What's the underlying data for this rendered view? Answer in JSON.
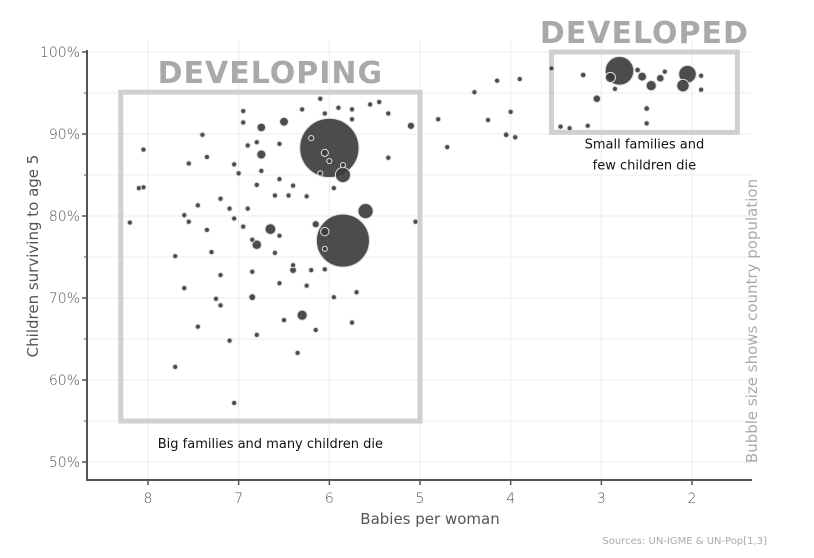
{
  "chart_data": {
    "type": "scatter",
    "title": "",
    "xlabel": "Babies per woman",
    "ylabel": "Children surviving to age 5",
    "xlim": [
      8.65,
      1.35
    ],
    "ylim": [
      47.8,
      100
    ],
    "x_reversed": true,
    "grid": true,
    "x_ticks": [
      8,
      7,
      6,
      5,
      4,
      3,
      2
    ],
    "x_tick_labels": [
      "8",
      "7",
      "6",
      "5",
      "4",
      "3",
      "2"
    ],
    "y_ticks": [
      50,
      60,
      70,
      80,
      90,
      100
    ],
    "y_tick_labels": [
      "50%",
      "60%",
      "70%",
      "80%",
      "90%",
      "100%"
    ],
    "size_note": "Bubble size shows country population",
    "source": "Sources: UN-IGME & UN-Pop[1,3]",
    "regions": [
      {
        "label": "DEVELOPING",
        "x_range": [
          8.3,
          5.0
        ],
        "y_range": [
          55.0,
          95.1
        ],
        "caption": "Big families and many children die"
      },
      {
        "label": "DEVELOPED",
        "x_range": [
          3.55,
          1.5
        ],
        "y_range": [
          90.2,
          100.0
        ],
        "caption_lines": [
          "Small families and",
          "few children die"
        ]
      }
    ],
    "points": [
      {
        "x": 6.0,
        "y": 88.3,
        "size": 1370
      },
      {
        "x": 5.85,
        "y": 77.0,
        "size": 1100
      },
      {
        "x": 2.8,
        "y": 97.7,
        "size": 320
      },
      {
        "x": 2.05,
        "y": 97.3,
        "size": 120
      },
      {
        "x": 5.6,
        "y": 80.6,
        "size": 90
      },
      {
        "x": 5.85,
        "y": 85.0,
        "size": 90
      },
      {
        "x": 6.3,
        "y": 67.9,
        "size": 40
      },
      {
        "x": 6.65,
        "y": 78.4,
        "size": 45
      },
      {
        "x": 6.8,
        "y": 76.5,
        "size": 35
      },
      {
        "x": 6.75,
        "y": 87.5,
        "size": 32
      },
      {
        "x": 6.75,
        "y": 90.8,
        "size": 28
      },
      {
        "x": 6.5,
        "y": 91.5,
        "size": 30
      },
      {
        "x": 6.05,
        "y": 78.1,
        "size": 28
      },
      {
        "x": 6.15,
        "y": 79.0,
        "size": 20
      },
      {
        "x": 6.05,
        "y": 87.7,
        "size": 20
      },
      {
        "x": 6.4,
        "y": 73.4,
        "size": 18
      },
      {
        "x": 6.85,
        "y": 70.1,
        "size": 18
      },
      {
        "x": 5.1,
        "y": 91.0,
        "size": 20
      },
      {
        "x": 3.05,
        "y": 94.3,
        "size": 22
      },
      {
        "x": 2.45,
        "y": 95.9,
        "size": 40
      },
      {
        "x": 2.5,
        "y": 93.1,
        "size": 12
      },
      {
        "x": 2.55,
        "y": 97.0,
        "size": 30
      },
      {
        "x": 2.1,
        "y": 95.9,
        "size": 60
      },
      {
        "x": 1.9,
        "y": 95.4,
        "size": 10
      },
      {
        "x": 1.9,
        "y": 97.1,
        "size": 6
      },
      {
        "x": 3.2,
        "y": 97.2,
        "size": 12
      },
      {
        "x": 3.15,
        "y": 91.0,
        "size": 8
      },
      {
        "x": 2.9,
        "y": 96.9,
        "size": 40
      },
      {
        "x": 2.85,
        "y": 95.5,
        "size": 10
      },
      {
        "x": 2.35,
        "y": 96.8,
        "size": 22
      },
      {
        "x": 2.3,
        "y": 97.6,
        "size": 10
      },
      {
        "x": 2.6,
        "y": 97.8,
        "size": 12
      },
      {
        "x": 2.5,
        "y": 91.3,
        "size": 8
      },
      {
        "x": 4.8,
        "y": 91.8,
        "size": 8
      },
      {
        "x": 4.4,
        "y": 95.1,
        "size": 8
      },
      {
        "x": 4.15,
        "y": 96.5,
        "size": 6
      },
      {
        "x": 4.05,
        "y": 89.9,
        "size": 12
      },
      {
        "x": 4.0,
        "y": 92.7,
        "size": 6
      },
      {
        "x": 3.55,
        "y": 98.0,
        "size": 6
      },
      {
        "x": 3.9,
        "y": 96.7,
        "size": 6
      },
      {
        "x": 3.35,
        "y": 90.7,
        "size": 6
      },
      {
        "x": 3.45,
        "y": 90.9,
        "size": 6
      },
      {
        "x": 4.7,
        "y": 88.4,
        "size": 10
      },
      {
        "x": 3.95,
        "y": 89.6,
        "size": 6
      },
      {
        "x": 4.25,
        "y": 91.7,
        "size": 6
      },
      {
        "x": 8.1,
        "y": 83.4,
        "size": 10
      },
      {
        "x": 8.05,
        "y": 83.5,
        "size": 6
      },
      {
        "x": 8.2,
        "y": 79.2,
        "size": 6
      },
      {
        "x": 8.05,
        "y": 88.1,
        "size": 6
      },
      {
        "x": 7.7,
        "y": 75.1,
        "size": 10
      },
      {
        "x": 7.55,
        "y": 86.4,
        "size": 6
      },
      {
        "x": 7.4,
        "y": 89.9,
        "size": 6
      },
      {
        "x": 7.35,
        "y": 87.2,
        "size": 6
      },
      {
        "x": 7.7,
        "y": 61.6,
        "size": 8
      },
      {
        "x": 7.05,
        "y": 57.2,
        "size": 8
      },
      {
        "x": 7.45,
        "y": 66.5,
        "size": 8
      },
      {
        "x": 7.6,
        "y": 71.2,
        "size": 8
      },
      {
        "x": 7.0,
        "y": 85.2,
        "size": 8
      },
      {
        "x": 7.05,
        "y": 86.3,
        "size": 8
      },
      {
        "x": 6.95,
        "y": 92.8,
        "size": 6
      },
      {
        "x": 6.95,
        "y": 91.4,
        "size": 6
      },
      {
        "x": 6.9,
        "y": 88.6,
        "size": 6
      },
      {
        "x": 6.8,
        "y": 89.0,
        "size": 8
      },
      {
        "x": 6.55,
        "y": 88.8,
        "size": 10
      },
      {
        "x": 6.6,
        "y": 82.5,
        "size": 6
      },
      {
        "x": 6.75,
        "y": 85.5,
        "size": 6
      },
      {
        "x": 6.8,
        "y": 83.8,
        "size": 8
      },
      {
        "x": 6.55,
        "y": 84.5,
        "size": 10
      },
      {
        "x": 6.4,
        "y": 83.7,
        "size": 8
      },
      {
        "x": 6.45,
        "y": 82.5,
        "size": 8
      },
      {
        "x": 6.25,
        "y": 82.4,
        "size": 8
      },
      {
        "x": 6.0,
        "y": 86.7,
        "size": 8
      },
      {
        "x": 5.85,
        "y": 86.2,
        "size": 8
      },
      {
        "x": 6.2,
        "y": 89.5,
        "size": 6
      },
      {
        "x": 6.3,
        "y": 93.0,
        "size": 10
      },
      {
        "x": 5.9,
        "y": 93.2,
        "size": 10
      },
      {
        "x": 5.75,
        "y": 93.0,
        "size": 8
      },
      {
        "x": 5.55,
        "y": 93.6,
        "size": 6
      },
      {
        "x": 5.45,
        "y": 93.9,
        "size": 6
      },
      {
        "x": 5.35,
        "y": 92.5,
        "size": 6
      },
      {
        "x": 6.1,
        "y": 94.3,
        "size": 6
      },
      {
        "x": 6.05,
        "y": 92.5,
        "size": 6
      },
      {
        "x": 5.75,
        "y": 91.8,
        "size": 6
      },
      {
        "x": 5.35,
        "y": 87.1,
        "size": 6
      },
      {
        "x": 5.05,
        "y": 79.3,
        "size": 6
      },
      {
        "x": 7.2,
        "y": 82.1,
        "size": 6
      },
      {
        "x": 7.05,
        "y": 79.7,
        "size": 8
      },
      {
        "x": 6.95,
        "y": 78.7,
        "size": 10
      },
      {
        "x": 7.1,
        "y": 80.9,
        "size": 6
      },
      {
        "x": 6.85,
        "y": 77.1,
        "size": 8
      },
      {
        "x": 6.9,
        "y": 80.9,
        "size": 8
      },
      {
        "x": 6.85,
        "y": 73.2,
        "size": 6
      },
      {
        "x": 7.3,
        "y": 75.6,
        "size": 6
      },
      {
        "x": 7.25,
        "y": 69.9,
        "size": 6
      },
      {
        "x": 7.2,
        "y": 69.1,
        "size": 6
      },
      {
        "x": 7.2,
        "y": 72.8,
        "size": 6
      },
      {
        "x": 7.45,
        "y": 81.3,
        "size": 6
      },
      {
        "x": 7.6,
        "y": 80.1,
        "size": 6
      },
      {
        "x": 7.55,
        "y": 79.3,
        "size": 6
      },
      {
        "x": 7.35,
        "y": 78.3,
        "size": 6
      },
      {
        "x": 7.1,
        "y": 64.8,
        "size": 6
      },
      {
        "x": 6.8,
        "y": 65.5,
        "size": 6
      },
      {
        "x": 6.5,
        "y": 67.3,
        "size": 6
      },
      {
        "x": 6.35,
        "y": 63.3,
        "size": 6
      },
      {
        "x": 6.15,
        "y": 66.1,
        "size": 6
      },
      {
        "x": 6.25,
        "y": 71.5,
        "size": 8
      },
      {
        "x": 6.4,
        "y": 74.0,
        "size": 6
      },
      {
        "x": 6.55,
        "y": 71.8,
        "size": 6
      },
      {
        "x": 6.05,
        "y": 73.5,
        "size": 8
      },
      {
        "x": 5.95,
        "y": 70.1,
        "size": 8
      },
      {
        "x": 5.75,
        "y": 67.0,
        "size": 6
      },
      {
        "x": 5.7,
        "y": 70.7,
        "size": 6
      },
      {
        "x": 6.2,
        "y": 73.4,
        "size": 6
      },
      {
        "x": 6.6,
        "y": 75.5,
        "size": 6
      },
      {
        "x": 6.55,
        "y": 77.6,
        "size": 8
      },
      {
        "x": 6.05,
        "y": 76.0,
        "size": 6
      },
      {
        "x": 5.95,
        "y": 83.4,
        "size": 10
      },
      {
        "x": 6.1,
        "y": 85.2,
        "size": 8
      }
    ]
  }
}
